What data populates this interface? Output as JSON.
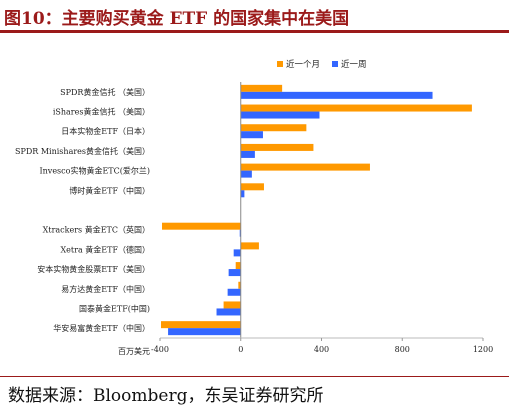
{
  "header": {
    "title": "图10：主要购买黄金 ETF 的国家集中在美国"
  },
  "source": "数据来源：Bloomberg，东吴证券研究所",
  "colors": {
    "month": "#FF9900",
    "week": "#3366FF",
    "title": "#9b1a1a"
  },
  "chart_data": {
    "type": "bar",
    "orientation": "horizontal",
    "unit_label": "百万美元",
    "xlim": [
      -400,
      1200
    ],
    "xticks": [
      -400,
      0,
      400,
      800,
      1200
    ],
    "xtick_labels": [
      "-400",
      "0",
      "400",
      "800",
      "1200"
    ],
    "legend_position": "top-right",
    "categories": [
      "SPDR黄金信托 （美国）",
      "iShares黄金信托 （美国）",
      "日本实物金ETF（日本）",
      "SPDR Minishares黄金信托（美国）",
      "Invesco实物黄金ETC(爱尔兰)",
      "博时黄金ETF（中国）",
      "",
      "Xtrackers 黄金ETC（英国）",
      "Xetra 黄金ETF（德国）",
      "安本实物黄金股票ETF（美国）",
      "易方达黄金ETF（中国）",
      "国泰黄金ETF(中国)",
      "华安易富黄金ETF（中国）"
    ],
    "series": [
      {
        "name": "近一个月",
        "color": "#FF9900",
        "values": [
          205,
          1145,
          325,
          360,
          640,
          115,
          null,
          -390,
          90,
          -25,
          -12,
          -85,
          -395
        ]
      },
      {
        "name": "近一周",
        "color": "#3366FF",
        "values": [
          950,
          390,
          110,
          70,
          55,
          18,
          null,
          -5,
          -35,
          -60,
          -65,
          -120,
          -360
        ]
      }
    ]
  }
}
